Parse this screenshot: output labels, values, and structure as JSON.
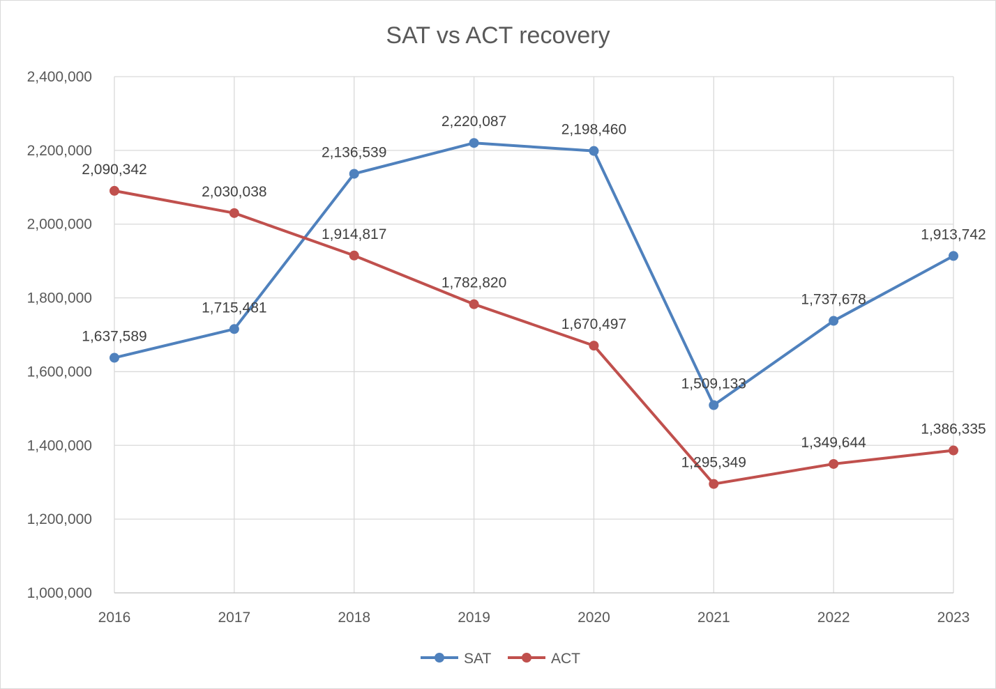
{
  "chart_data": {
    "type": "line",
    "title": "SAT vs ACT recovery",
    "categories": [
      "2016",
      "2017",
      "2018",
      "2019",
      "2020",
      "2021",
      "2022",
      "2023"
    ],
    "ylim": [
      1000000,
      2400000
    ],
    "ytick_step": 200000,
    "yticks": [
      "1,000,000",
      "1,200,000",
      "1,400,000",
      "1,600,000",
      "1,800,000",
      "2,000,000",
      "2,200,000",
      "2,400,000"
    ],
    "grid": true,
    "legend_position": "bottom",
    "series": [
      {
        "name": "SAT",
        "color": "#4F81BD",
        "values": [
          1637589,
          1715481,
          2136539,
          2220087,
          2198460,
          1509133,
          1737678,
          1913742
        ],
        "labels": [
          "1,637,589",
          "1,715,481",
          "2,136,539",
          "2,220,087",
          "2,198,460",
          "1,509,133",
          "1,737,678",
          "1,913,742"
        ]
      },
      {
        "name": "ACT",
        "color": "#C0504D",
        "values": [
          2090342,
          2030038,
          1914817,
          1782820,
          1670497,
          1295349,
          1349644,
          1386335
        ],
        "labels": [
          "2,090,342",
          "2,030,038",
          "1,914,817",
          "1,782,820",
          "1,670,497",
          "1,295,349",
          "1,349,644",
          "1,386,335"
        ]
      }
    ]
  }
}
